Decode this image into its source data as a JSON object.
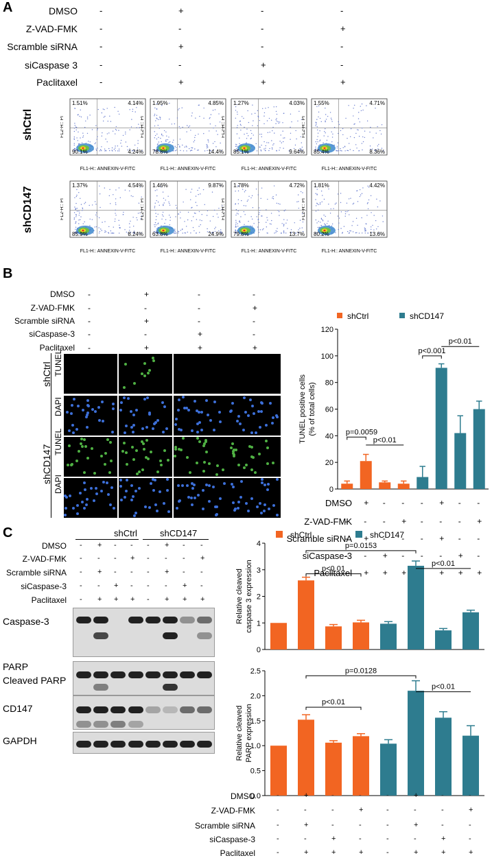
{
  "panels": {
    "a": "A",
    "b": "B",
    "c": "C"
  },
  "treatments": [
    "DMSO",
    "Z-VAD-FMK",
    "Scramble siRNA",
    "siCaspase 3",
    "Paclitaxel"
  ],
  "treatmentsB": [
    "DMSO",
    "Z-VAD-FMK",
    "Scramble siRNA",
    "siCaspase-3",
    "Paclitaxel"
  ],
  "treatment_matrix_4": [
    [
      "-",
      "+",
      "-",
      "-"
    ],
    [
      "-",
      "-",
      "-",
      "+"
    ],
    [
      "-",
      "+",
      "-",
      "-"
    ],
    [
      "-",
      "-",
      "+",
      "-"
    ],
    [
      "-",
      "+",
      "+",
      "+"
    ]
  ],
  "treatment_matrix_8": [
    [
      "-",
      "+",
      "-",
      "-",
      "-",
      "+",
      "-",
      "-"
    ],
    [
      "-",
      "-",
      "-",
      "+",
      "-",
      "-",
      "-",
      "+"
    ],
    [
      "-",
      "+",
      "-",
      "-",
      "-",
      "+",
      "-",
      "-"
    ],
    [
      "-",
      "-",
      "+",
      "-",
      "-",
      "-",
      "+",
      "-"
    ],
    [
      "-",
      "+",
      "+",
      "+",
      "-",
      "+",
      "+",
      "+"
    ]
  ],
  "groups": {
    "ctrl": "shCtrl",
    "cd147": "shCD147"
  },
  "flow": {
    "ylabel": "FL2-H:: PI",
    "xlabel": "FL1-H:: ANNEXIN-V-FITC",
    "xlabel_trunc": "FL1-H:: ANNEXIN-V-FITC",
    "shCtrl": [
      {
        "ul": "1.51%",
        "ur": "4.14%",
        "ll": "90.1%",
        "lr": "4.24%"
      },
      {
        "ul": "1.95%",
        "ur": "4.85%",
        "ll": "78.8%",
        "lr": "14.4%"
      },
      {
        "ul": "1.27%",
        "ur": "4.03%",
        "ll": "85.1%",
        "lr": "9.64%"
      },
      {
        "ul": "1.55%",
        "ur": "4.71%",
        "ll": "85.4%",
        "lr": "8.36%"
      }
    ],
    "shCD147": [
      {
        "ul": "1.37%",
        "ur": "4.54%",
        "ll": "85.9%",
        "lr": "8.24%"
      },
      {
        "ul": "1.46%",
        "ur": "9.87%",
        "ll": "63.8%",
        "lr": "24.9%"
      },
      {
        "ul": "1.78%",
        "ur": "4.72%",
        "ll": "79.8%",
        "lr": "13.7%"
      },
      {
        "ul": "1.81%",
        "ur": "4.42%",
        "ll": "80.2%",
        "lr": "13.6%"
      }
    ]
  },
  "stain": {
    "tunel": "TUNEL",
    "dapi": "DAPI"
  },
  "blot": {
    "caspase": "Caspase-3",
    "parp": "PARP",
    "cleaved_parp": "Cleaved PARP",
    "cd147": "CD147",
    "gapdh": "GAPDH"
  },
  "colors": {
    "shCtrl": "#f26522",
    "shCD147": "#2e7c8f"
  },
  "chart_data": [
    {
      "type": "bar",
      "ylabel_line1": "TUNEL positive cells",
      "ylabel_line2": "(% of total cells)",
      "ylim": [
        0,
        120
      ],
      "yticks": [
        0,
        20,
        40,
        60,
        80,
        100,
        120
      ],
      "series": [
        {
          "name": "shCtrl",
          "values": [
            4,
            21,
            5,
            4
          ],
          "errors": [
            2,
            5,
            1,
            2
          ]
        },
        {
          "name": "shCD147",
          "values": [
            9,
            91,
            42,
            60
          ],
          "errors": [
            8,
            3,
            13,
            6
          ]
        }
      ],
      "annotations": [
        {
          "text": "p=0.0059"
        },
        {
          "text": "p<0.01"
        },
        {
          "text": "p<0.001"
        },
        {
          "text": "p<0.01"
        }
      ]
    },
    {
      "type": "bar",
      "ylabel_line1": "Relative cleaved",
      "ylabel_line2": "caspase 3 expression",
      "ylim": [
        0,
        4
      ],
      "yticks": [
        0,
        1,
        2,
        3,
        4
      ],
      "series": [
        {
          "name": "shCtrl",
          "values": [
            1,
            2.6,
            0.87,
            1.02
          ],
          "errors": [
            0,
            0.12,
            0.07,
            0.08
          ]
        },
        {
          "name": "shCD147",
          "values": [
            0.97,
            3.15,
            0.72,
            1.4
          ],
          "errors": [
            0.08,
            0.18,
            0.07,
            0.08
          ]
        }
      ],
      "annotations": [
        {
          "text": "p=0.0153"
        },
        {
          "text": "p<0.01"
        },
        {
          "text": "p<0.01"
        }
      ]
    },
    {
      "type": "bar",
      "ylabel_line1": "Relative cleaved",
      "ylabel_line2": "PARP expression",
      "ylim": [
        0,
        2.5
      ],
      "yticks": [
        "0.0",
        "0.5",
        "1.0",
        "1.5",
        "2.0",
        "2.5"
      ],
      "series": [
        {
          "name": "shCtrl",
          "values": [
            1,
            1.52,
            1.06,
            1.19
          ],
          "errors": [
            0,
            0.1,
            0.04,
            0.05
          ]
        },
        {
          "name": "shCD147",
          "values": [
            1.04,
            2.1,
            1.56,
            1.2
          ],
          "errors": [
            0.08,
            0.2,
            0.12,
            0.2
          ]
        }
      ],
      "annotations": [
        {
          "text": "p=0.0128"
        },
        {
          "text": "p<0.01"
        },
        {
          "text": "p<0.01"
        }
      ]
    }
  ]
}
